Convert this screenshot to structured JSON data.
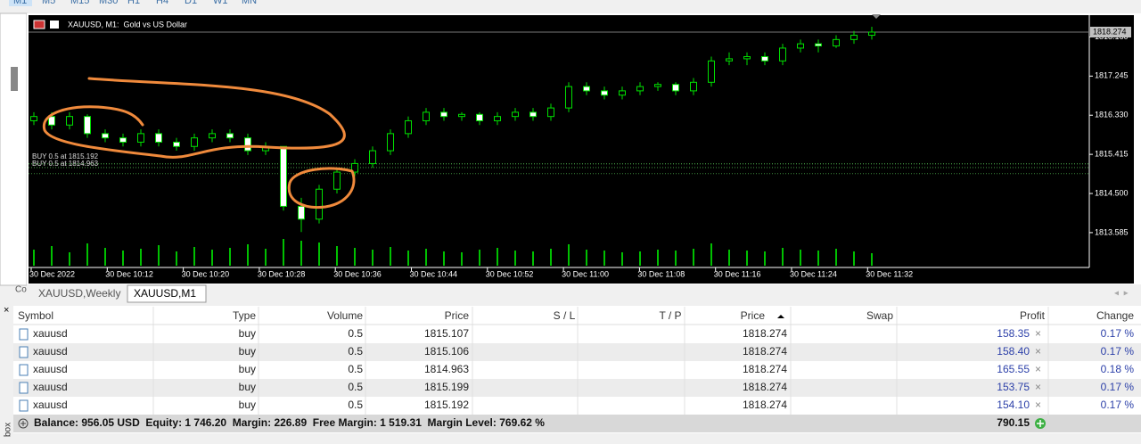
{
  "toolbar": {
    "timeframes": [
      "M1",
      "M5",
      "M15",
      "M30",
      "H1",
      "H4",
      "D1",
      "W1",
      "MN"
    ]
  },
  "chart_data": {
    "type": "candlestick",
    "title": "XAUUSD, M1:  Gold vs US Dollar",
    "candles": [
      [
        1816.2,
        1816.4,
        1816.1,
        1816.3
      ],
      [
        1816.3,
        1816.4,
        1816.0,
        1816.1
      ],
      [
        1816.1,
        1816.4,
        1816.0,
        1816.3
      ],
      [
        1816.3,
        1816.35,
        1815.8,
        1815.9
      ],
      [
        1815.9,
        1816.0,
        1815.7,
        1815.8
      ],
      [
        1815.8,
        1815.9,
        1815.6,
        1815.7
      ],
      [
        1815.7,
        1816.0,
        1815.6,
        1815.9
      ],
      [
        1815.9,
        1816.0,
        1815.6,
        1815.7
      ],
      [
        1815.7,
        1815.8,
        1815.5,
        1815.6
      ],
      [
        1815.6,
        1815.9,
        1815.5,
        1815.8
      ],
      [
        1815.8,
        1816.0,
        1815.7,
        1815.9
      ],
      [
        1815.9,
        1816.0,
        1815.7,
        1815.8
      ],
      [
        1815.8,
        1815.9,
        1815.4,
        1815.5
      ],
      [
        1815.5,
        1815.7,
        1815.4,
        1815.6
      ],
      [
        1815.6,
        1815.6,
        1814.1,
        1814.2
      ],
      [
        1814.2,
        1814.4,
        1813.6,
        1813.9
      ],
      [
        1813.9,
        1814.7,
        1813.8,
        1814.6
      ],
      [
        1814.6,
        1815.1,
        1814.5,
        1815.0
      ],
      [
        1815.0,
        1815.3,
        1814.9,
        1815.2
      ],
      [
        1815.2,
        1815.6,
        1815.1,
        1815.5
      ],
      [
        1815.5,
        1816.0,
        1815.4,
        1815.9
      ],
      [
        1815.9,
        1816.3,
        1815.8,
        1816.2
      ],
      [
        1816.2,
        1816.5,
        1816.1,
        1816.4
      ],
      [
        1816.4,
        1816.5,
        1816.2,
        1816.3
      ],
      [
        1816.3,
        1816.4,
        1816.2,
        1816.35
      ],
      [
        1816.35,
        1816.4,
        1816.1,
        1816.2
      ],
      [
        1816.2,
        1816.4,
        1816.1,
        1816.3
      ],
      [
        1816.3,
        1816.5,
        1816.2,
        1816.4
      ],
      [
        1816.4,
        1816.5,
        1816.2,
        1816.3
      ],
      [
        1816.3,
        1816.6,
        1816.2,
        1816.5
      ],
      [
        1816.5,
        1817.1,
        1816.4,
        1817.0
      ],
      [
        1817.0,
        1817.1,
        1816.8,
        1816.9
      ],
      [
        1816.9,
        1817.0,
        1816.7,
        1816.8
      ],
      [
        1816.8,
        1817.0,
        1816.7,
        1816.9
      ],
      [
        1816.9,
        1817.1,
        1816.8,
        1817.0
      ],
      [
        1817.0,
        1817.1,
        1816.9,
        1817.05
      ],
      [
        1817.05,
        1817.1,
        1816.8,
        1816.9
      ],
      [
        1816.9,
        1817.2,
        1816.8,
        1817.1
      ],
      [
        1817.1,
        1817.7,
        1817.0,
        1817.6
      ],
      [
        1817.6,
        1817.8,
        1817.5,
        1817.65
      ],
      [
        1817.65,
        1817.8,
        1817.5,
        1817.7
      ],
      [
        1817.7,
        1817.8,
        1817.5,
        1817.6
      ],
      [
        1817.6,
        1818.0,
        1817.5,
        1817.9
      ],
      [
        1817.9,
        1818.1,
        1817.8,
        1818.0
      ],
      [
        1818.0,
        1818.1,
        1817.8,
        1817.95
      ],
      [
        1817.95,
        1818.2,
        1817.9,
        1818.1
      ],
      [
        1818.1,
        1818.3,
        1818.0,
        1818.2
      ],
      [
        1818.2,
        1818.4,
        1818.1,
        1818.274
      ]
    ],
    "volumes": [
      18,
      22,
      15,
      25,
      20,
      17,
      19,
      23,
      16,
      21,
      18,
      20,
      24,
      19,
      30,
      28,
      26,
      22,
      20,
      18,
      21,
      17,
      19,
      16,
      15,
      18,
      20,
      17,
      16,
      19,
      24,
      18,
      17,
      15,
      16,
      18,
      17,
      19,
      25,
      18,
      17,
      16,
      20,
      18,
      17,
      19,
      16,
      14
    ],
    "ylim": [
      1812.77,
      1818.67
    ],
    "yticks": [
      {
        "value": 1818.16,
        "label": "1818.160"
      },
      1817.245,
      {
        "value": 1816.33,
        "label": "1816.330"
      },
      1815.415,
      {
        "value": 1814.5,
        "label": "1814.500"
      },
      1813.585
    ],
    "bid": 1818.274,
    "x_labels": [
      "30 Dec 2022",
      "30 Dec 10:12",
      "30 Dec 10:20",
      "30 Dec 10:28",
      "30 Dec 10:36",
      "30 Dec 10:44",
      "30 Dec 10:52",
      "30 Dec 11:00",
      "30 Dec 11:08",
      "30 Dec 11:16",
      "30 Dec 11:24",
      "30 Dec 11:32"
    ],
    "order_labels": [
      "BUY 0.5 at 1815.192",
      "BUY 0.5 at 1814.963"
    ]
  },
  "tabs": [
    "XAUUSD,Weekly",
    "XAUUSD,M1"
  ],
  "side": {
    "top": "Co",
    "bottom": "box"
  },
  "table": {
    "columns": [
      "Symbol",
      "Type",
      "Volume",
      "Price",
      "S / L",
      "T / P",
      "Price",
      "Swap",
      "Profit",
      "Change"
    ],
    "rows": [
      [
        "xauusd",
        "buy",
        "0.5",
        "1815.107",
        "1818.274",
        "158.35",
        "0.17 %"
      ],
      [
        "xauusd",
        "buy",
        "0.5",
        "1815.106",
        "1818.274",
        "158.40",
        "0.17 %"
      ],
      [
        "xauusd",
        "buy",
        "0.5",
        "1814.963",
        "1818.274",
        "165.55",
        "0.18 %"
      ],
      [
        "xauusd",
        "buy",
        "0.5",
        "1815.199",
        "1818.274",
        "153.75",
        "0.17 %"
      ],
      [
        "xauusd",
        "buy",
        "0.5",
        "1815.192",
        "1818.274",
        "154.10",
        "0.17 %"
      ]
    ],
    "summary": "Balance: 956.05 USD  Equity: 1 746.20  Margin: 226.89  Free Margin: 1 519.31  Margin Level: 769.62 %",
    "total": "790.15"
  }
}
